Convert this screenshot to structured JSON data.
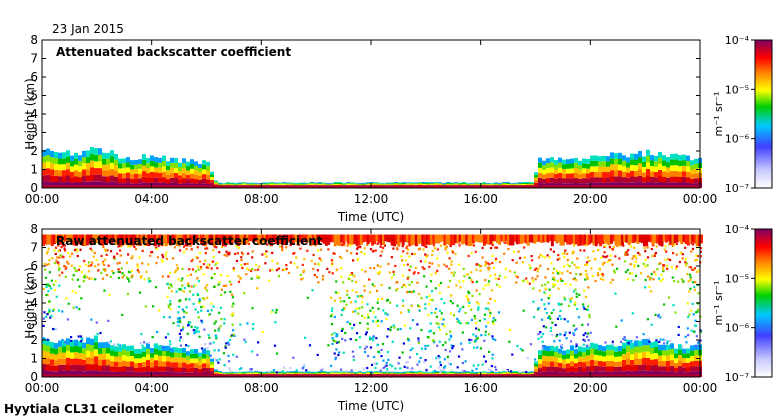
{
  "date": "23 Jan 2015",
  "footer": "Hyytiala CL31 ceilometer",
  "chart_data": [
    {
      "type": "heatmap",
      "title": "Attenuated backscatter coefficient",
      "xlabel": "Time (UTC)",
      "ylabel": "Height (km)",
      "xlim": [
        0,
        24
      ],
      "ylim": [
        0,
        8
      ],
      "xticks": [
        0,
        4,
        8,
        12,
        16,
        20,
        24
      ],
      "xtick_labels": [
        "00:00",
        "04:00",
        "08:00",
        "12:00",
        "16:00",
        "20:00",
        "00:00"
      ],
      "yticks": [
        0,
        1,
        2,
        3,
        4,
        5,
        6,
        7,
        8
      ],
      "ytick_labels": [
        "0",
        "1",
        "2",
        "3",
        "4",
        "5",
        "6",
        "7",
        "8"
      ],
      "boundary_layer_top_km": [
        {
          "t": 0.0,
          "h": 2.0
        },
        {
          "t": 1.0,
          "h": 1.9
        },
        {
          "t": 2.0,
          "h": 2.1
        },
        {
          "t": 3.0,
          "h": 1.6
        },
        {
          "t": 4.0,
          "h": 1.7
        },
        {
          "t": 5.0,
          "h": 1.5
        },
        {
          "t": 6.0,
          "h": 1.4
        },
        {
          "t": 6.3,
          "h": 0.3
        },
        {
          "t": 12.0,
          "h": 0.3
        },
        {
          "t": 17.9,
          "h": 0.3
        },
        {
          "t": 18.0,
          "h": 1.6
        },
        {
          "t": 19.0,
          "h": 1.5
        },
        {
          "t": 20.0,
          "h": 1.7
        },
        {
          "t": 21.0,
          "h": 1.8
        },
        {
          "t": 22.0,
          "h": 1.9
        },
        {
          "t": 23.0,
          "h": 1.7
        },
        {
          "t": 24.0,
          "h": 1.6
        }
      ],
      "colorbar": {
        "scale": "log",
        "range": [
          1e-07,
          0.0001
        ],
        "tick_labels": [
          "10⁻⁴",
          "10⁻⁵",
          "10⁻⁶",
          "10⁻⁷"
        ],
        "units": "m⁻¹ sr⁻¹"
      }
    },
    {
      "type": "heatmap",
      "title": "Raw attenuated backscatter coefficient",
      "xlabel": "Time (UTC)",
      "ylabel": "Height (km)",
      "xlim": [
        0,
        24
      ],
      "ylim": [
        0,
        8
      ],
      "xticks": [
        0,
        4,
        8,
        12,
        16,
        20,
        24
      ],
      "xtick_labels": [
        "00:00",
        "04:00",
        "08:00",
        "12:00",
        "16:00",
        "20:00",
        "00:00"
      ],
      "yticks": [
        0,
        1,
        2,
        3,
        4,
        5,
        6,
        7,
        8
      ],
      "ytick_labels": [
        "0",
        "1",
        "2",
        "3",
        "4",
        "5",
        "6",
        "7",
        "8"
      ],
      "noise_top_km": 7.7,
      "colorbar": {
        "scale": "log",
        "range": [
          1e-07,
          0.0001
        ],
        "tick_labels": [
          "10⁻⁴",
          "10⁻⁵",
          "10⁻⁶",
          "10⁻⁷"
        ],
        "units": "m⁻¹ sr⁻¹"
      }
    }
  ]
}
